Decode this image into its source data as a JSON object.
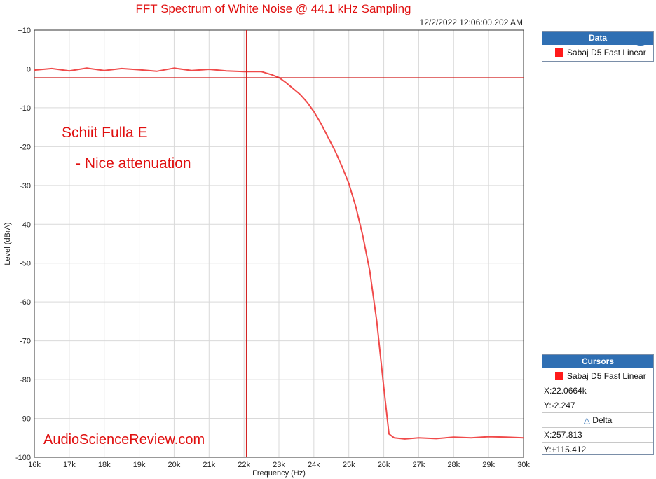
{
  "chart_data": {
    "type": "line",
    "title": "FFT Spectrum of White Noise @ 44.1 kHz Sampling",
    "timestamp": "12/2/2022 12:06:00.202 AM",
    "xlabel": "Frequency (Hz)",
    "ylabel": "Level (dBrA)",
    "xlim": [
      16000,
      30000
    ],
    "ylim": [
      -100,
      10
    ],
    "x_ticks": [
      "16k",
      "17k",
      "18k",
      "19k",
      "20k",
      "21k",
      "22k",
      "23k",
      "24k",
      "25k",
      "26k",
      "27k",
      "28k",
      "29k",
      "30k"
    ],
    "y_ticks": [
      "+10",
      "0",
      "-10",
      "-20",
      "-30",
      "-40",
      "-50",
      "-60",
      "-70",
      "-80",
      "-90",
      "-100"
    ],
    "grid": true,
    "series": [
      {
        "name": "Sabaj D5 Fast Linear",
        "color": "#f04a4a",
        "points": [
          [
            16000,
            -0.3
          ],
          [
            16500,
            0.1
          ],
          [
            17000,
            -0.5
          ],
          [
            17500,
            0.2
          ],
          [
            18000,
            -0.4
          ],
          [
            18500,
            0.1
          ],
          [
            19000,
            -0.2
          ],
          [
            19500,
            -0.6
          ],
          [
            20000,
            0.2
          ],
          [
            20500,
            -0.4
          ],
          [
            21000,
            -0.1
          ],
          [
            21500,
            -0.5
          ],
          [
            22000,
            -0.7
          ],
          [
            22500,
            -0.7
          ],
          [
            22800,
            -1.5
          ],
          [
            23000,
            -2.2
          ],
          [
            23200,
            -3.5
          ],
          [
            23400,
            -5.0
          ],
          [
            23600,
            -6.5
          ],
          [
            23800,
            -8.5
          ],
          [
            24000,
            -11.0
          ],
          [
            24200,
            -14.0
          ],
          [
            24400,
            -17.5
          ],
          [
            24600,
            -21.0
          ],
          [
            24800,
            -25.0
          ],
          [
            25000,
            -29.5
          ],
          [
            25200,
            -35.5
          ],
          [
            25400,
            -43.0
          ],
          [
            25600,
            -52.0
          ],
          [
            25800,
            -65.0
          ],
          [
            26000,
            -82.0
          ],
          [
            26150,
            -94.0
          ],
          [
            26300,
            -95.0
          ],
          [
            26600,
            -95.3
          ],
          [
            27000,
            -95.0
          ],
          [
            27500,
            -95.2
          ],
          [
            28000,
            -94.8
          ],
          [
            28500,
            -95.0
          ],
          [
            29000,
            -94.7
          ],
          [
            29500,
            -94.8
          ],
          [
            30000,
            -95.0
          ]
        ]
      }
    ],
    "annotations": [
      "Schiit Fulla E",
      "- Nice attenuation",
      "AudioScienceReview.com"
    ],
    "cursor": {
      "x": 22066.4,
      "y": -2.247,
      "color": "#d11a1a"
    }
  },
  "data_panel": {
    "header": "Data",
    "logo": "AP",
    "legend_label": "Sabaj D5 Fast Linear"
  },
  "cursors_panel": {
    "header": "Cursors",
    "legend_label": "Sabaj D5 Fast Linear",
    "x_text": "X:22.0664k",
    "y_text": "Y:-2.247",
    "delta_label": "Delta",
    "delta_x_text": "X:257.813",
    "delta_y_text": "Y:+115.412"
  }
}
